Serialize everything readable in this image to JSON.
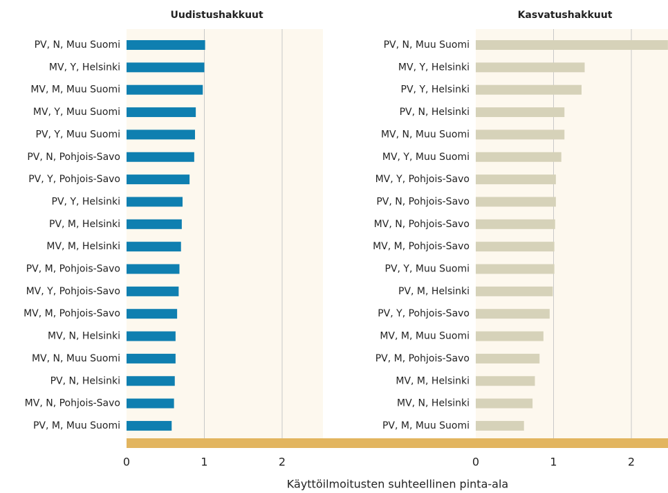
{
  "chart_data": [
    {
      "type": "hbar",
      "title": "Uudistushakkuut",
      "color": "#0f7fb0",
      "xlim": [
        0,
        2.5
      ],
      "xticks": [
        0,
        1,
        2
      ],
      "grid": true,
      "categories": [
        "PV, N, Muu Suomi",
        "MV, Y, Helsinki",
        "MV, M, Muu Suomi",
        "MV, Y, Muu Suomi",
        "PV, Y, Muu Suomi",
        "PV, N, Pohjois-Savo",
        "PV, Y, Pohjois-Savo",
        "PV, Y, Helsinki",
        "PV, M, Helsinki",
        "MV, M, Helsinki",
        "PV, M, Pohjois-Savo",
        "MV, Y, Pohjois-Savo",
        "MV, M, Pohjois-Savo",
        "MV, N, Helsinki",
        "MV, N, Muu Suomi",
        "PV, N, Helsinki",
        "MV, N, Pohjois-Savo",
        "PV, M, Muu Suomi"
      ],
      "values": [
        1.01,
        1.0,
        0.98,
        0.89,
        0.88,
        0.87,
        0.81,
        0.72,
        0.71,
        0.7,
        0.68,
        0.67,
        0.65,
        0.63,
        0.63,
        0.62,
        0.61,
        0.58
      ]
    },
    {
      "type": "hbar",
      "title": "Kasvatushakkuut",
      "color": "#d6d2b9",
      "xlim": [
        0,
        2.5
      ],
      "xticks": [
        0,
        1,
        2
      ],
      "grid": true,
      "categories": [
        "PV, N, Muu Suomi",
        "MV, Y, Helsinki",
        "PV, Y, Helsinki",
        "PV, N, Helsinki",
        "MV, N, Muu Suomi",
        "MV, Y, Muu Suomi",
        "MV, Y, Pohjois-Savo",
        "PV, N, Pohjois-Savo",
        "MV, N, Pohjois-Savo",
        "MV, M, Pohjois-Savo",
        "PV, Y, Muu Suomi",
        "PV, M, Helsinki",
        "PV, Y, Pohjois-Savo",
        "MV, M, Muu Suomi",
        "PV, M, Pohjois-Savo",
        "MV, M, Helsinki",
        "MV, N, Helsinki",
        "PV, M, Muu Suomi"
      ],
      "values": [
        2.47,
        1.4,
        1.36,
        1.14,
        1.14,
        1.1,
        1.03,
        1.03,
        1.02,
        1.01,
        1.01,
        0.99,
        0.95,
        0.87,
        0.82,
        0.76,
        0.73,
        0.62
      ]
    }
  ],
  "xlabel": "Käyttöilmoitusten suhteellinen pinta-ala"
}
